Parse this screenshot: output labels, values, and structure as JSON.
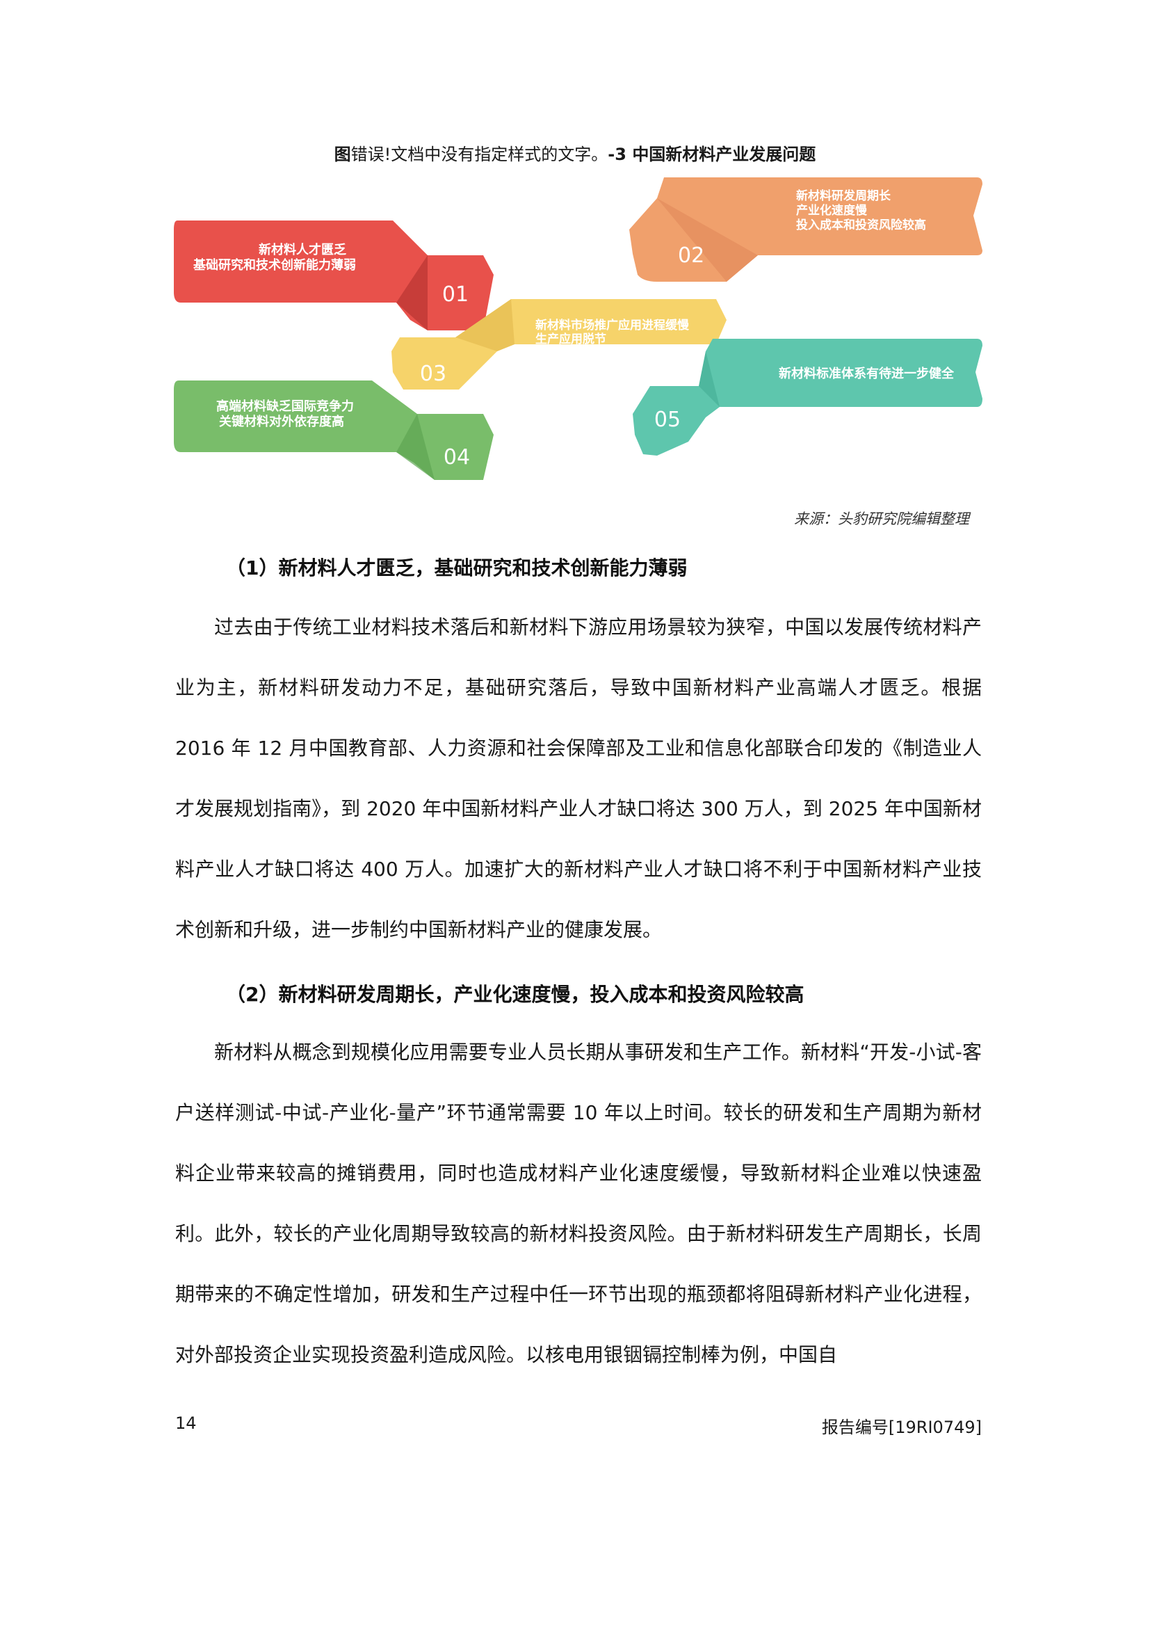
{
  "figure": {
    "caption_prefix": "图",
    "caption_error": "错误!文档中没有指定样式的文字。",
    "caption_suffix": "-3  中国新材料产业发展问题",
    "items": [
      {
        "num": "01",
        "lines": [
          "新材料人才匮乏",
          "基础研究和技术创新能力薄弱"
        ],
        "color": "#e8514b"
      },
      {
        "num": "02",
        "lines": [
          "新材料研发周期长",
          "产业化速度慢",
          "投入成本和投资风险较高"
        ],
        "color": "#f0a06c"
      },
      {
        "num": "03",
        "lines": [
          "新材料市场推广应用进程缓慢",
          "生产应用脱节"
        ],
        "color": "#f6d36a"
      },
      {
        "num": "04",
        "lines": [
          "高端材料缺乏国际竞争力",
          "关键材料对外依存度高"
        ],
        "color": "#79bd6a"
      },
      {
        "num": "05",
        "lines": [
          "新材料标准体系有待进一步健全"
        ],
        "color": "#5ec6ad"
      }
    ],
    "source": "来源：头豹研究院编辑整理"
  },
  "sections": [
    {
      "heading": "（1）新材料人才匮乏，基础研究和技术创新能力薄弱",
      "paragraph": "过去由于传统工业材料技术落后和新材料下游应用场景较为狭窄，中国以发展传统材料产业为主，新材料研发动力不足，基础研究落后，导致中国新材料产业高端人才匮乏。根据 2016 年 12 月中国教育部、人力资源和社会保障部及工业和信息化部联合印发的《制造业人才发展规划指南》，到 2020 年中国新材料产业人才缺口将达 300 万人，到 2025 年中国新材料产业人才缺口将达 400 万人。加速扩大的新材料产业人才缺口将不利于中国新材料产业技术创新和升级，进一步制约中国新材料产业的健康发展。"
    },
    {
      "heading": "（2）新材料研发周期长，产业化速度慢，投入成本和投资风险较高",
      "paragraph": "新材料从概念到规模化应用需要专业人员长期从事研发和生产工作。新材料“开发-小试-客户送样测试-中试-产业化-量产”环节通常需要 10 年以上时间。较长的研发和生产周期为新材料企业带来较高的摊销费用，同时也造成材料产业化速度缓慢，导致新材料企业难以快速盈利。此外，较长的产业化周期导致较高的新材料投资风险。由于新材料研发生产周期长，长周期带来的不确定性增加，研发和生产过程中任一环节出现的瓶颈都将阻碍新材料产业化进程，对外部投资企业实现投资盈利造成风险。以核电用银铟镉控制棒为例，中国自"
    }
  ],
  "footer": {
    "page_number": "14",
    "report_id": "报告编号[19RI0749]"
  }
}
